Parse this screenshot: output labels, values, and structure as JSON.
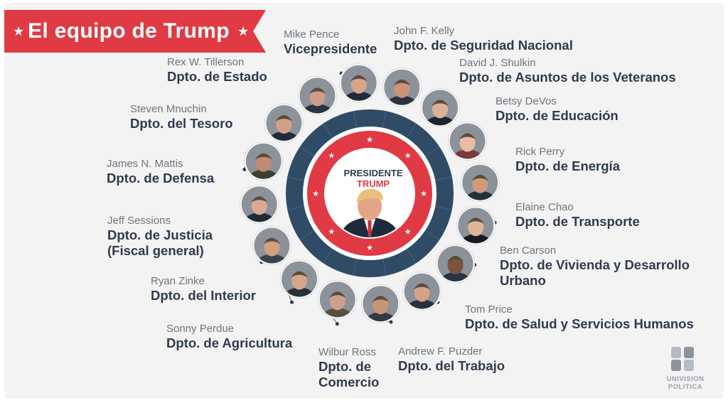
{
  "banner": {
    "title": "El equipo de Trump",
    "star_left": "★",
    "star_right": "★"
  },
  "center": {
    "title": "PRESIDENTE",
    "name": "TRUMP"
  },
  "people": [
    {
      "name": "Mike Pence",
      "dept": "Vicepresidente"
    },
    {
      "name": "John F. Kelly",
      "dept": "Dpto. de Seguridad Nacional"
    },
    {
      "name": "David J. Shulkin",
      "dept": "Dpto. de Asuntos de los Veteranos"
    },
    {
      "name": "Betsy DeVos",
      "dept": "Dpto. de Educación"
    },
    {
      "name": "Rick Perry",
      "dept": "Dpto. de Energía"
    },
    {
      "name": "Elaine Chao",
      "dept": "Dpto. de Transporte"
    },
    {
      "name": "Ben Carson",
      "dept": "Dpto. de Vivienda y Desarrollo\nUrbano"
    },
    {
      "name": "Tom Price",
      "dept": "Dpto. de Salud y Servicios Humanos"
    },
    {
      "name": "Andrew F. Puzder",
      "dept": "Dpto. del Trabajo"
    },
    {
      "name": "Wilbur Ross",
      "dept": "Dpto. de\nComercio"
    },
    {
      "name": "Sonny Perdue",
      "dept": "Dpto. de Agricultura"
    },
    {
      "name": "Ryan Zinke",
      "dept": "Dpto. del Interior"
    },
    {
      "name": "Jeff Sessions",
      "dept": "Dpto. de Justicia\n(Fiscal general)"
    },
    {
      "name": "James N. Mattis",
      "dept": "Dpto. de Defensa"
    },
    {
      "name": "Steven Mnuchin",
      "dept": "Dpto. del Tesoro"
    },
    {
      "name": "Rex W. Tillerson",
      "dept": "Dpto. de Estado"
    }
  ],
  "logo": {
    "line1": "UNIVISION",
    "line2": "POLITICA"
  },
  "colors": {
    "red": "#e03a45",
    "navy": "#2f4b66",
    "text": "#2f3b4c",
    "muted": "#6f747c"
  }
}
